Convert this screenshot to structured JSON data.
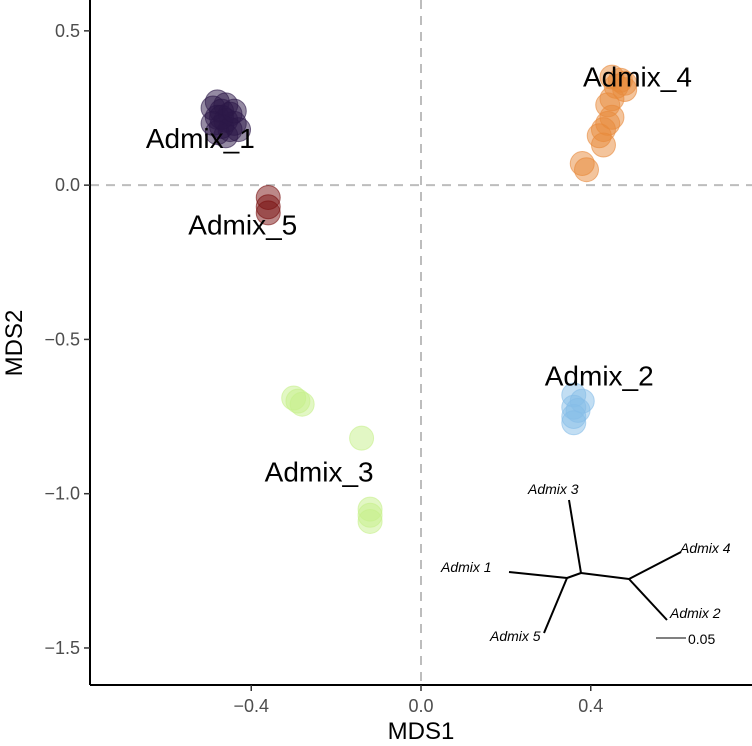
{
  "chart_data": {
    "type": "scatter",
    "xlabel": "MDS1",
    "ylabel": "MDS2",
    "xlim": [
      -0.78,
      0.78
    ],
    "ylim": [
      -1.62,
      0.6
    ],
    "x_ticks": [
      {
        "value": -0.4,
        "label": "−0.4"
      },
      {
        "value": 0.0,
        "label": "0.0"
      },
      {
        "value": 0.4,
        "label": "0.4"
      }
    ],
    "y_ticks": [
      {
        "value": 0.5,
        "label": "0.5"
      },
      {
        "value": 0.0,
        "label": "0.0"
      },
      {
        "value": -0.5,
        "label": "−0.5"
      },
      {
        "value": -1.0,
        "label": "−1.0"
      },
      {
        "value": -1.5,
        "label": "−1.5"
      }
    ],
    "reference_lines": {
      "x": 0,
      "y": 0,
      "style": "dashed",
      "color": "#bdbdbd"
    },
    "grid": false,
    "series": [
      {
        "name": "Admix_1",
        "color": "#2c1848",
        "label_at": [
          -0.52,
          0.12
        ],
        "points": [
          [
            -0.48,
            0.27
          ],
          [
            -0.46,
            0.26
          ],
          [
            -0.49,
            0.25
          ],
          [
            -0.47,
            0.24
          ],
          [
            -0.45,
            0.23
          ],
          [
            -0.48,
            0.22
          ],
          [
            -0.46,
            0.21
          ],
          [
            -0.44,
            0.2
          ],
          [
            -0.49,
            0.2
          ],
          [
            -0.47,
            0.19
          ],
          [
            -0.45,
            0.18
          ],
          [
            -0.43,
            0.18
          ],
          [
            -0.48,
            0.17
          ],
          [
            -0.46,
            0.16
          ],
          [
            -0.47,
            0.22
          ],
          [
            -0.44,
            0.24
          ]
        ]
      },
      {
        "name": "Admix_2",
        "color": "#85bde8",
        "label_at": [
          0.42,
          -0.65
        ],
        "points": [
          [
            0.36,
            -0.68
          ],
          [
            0.38,
            -0.7
          ],
          [
            0.36,
            -0.72
          ],
          [
            0.37,
            -0.73
          ],
          [
            0.36,
            -0.75
          ],
          [
            0.36,
            -0.77
          ]
        ]
      },
      {
        "name": "Admix_3",
        "color": "#c6f08a",
        "label_at": [
          -0.24,
          -0.96
        ],
        "points": [
          [
            -0.3,
            -0.69
          ],
          [
            -0.29,
            -0.7
          ],
          [
            -0.28,
            -0.71
          ],
          [
            -0.14,
            -0.82
          ],
          [
            -0.12,
            -1.05
          ],
          [
            -0.12,
            -1.07
          ],
          [
            -0.12,
            -1.09
          ]
        ]
      },
      {
        "name": "Admix_4",
        "color": "#e8893a",
        "label_at": [
          0.51,
          0.32
        ],
        "points": [
          [
            0.45,
            0.35
          ],
          [
            0.47,
            0.34
          ],
          [
            0.48,
            0.33
          ],
          [
            0.46,
            0.32
          ],
          [
            0.48,
            0.31
          ],
          [
            0.45,
            0.28
          ],
          [
            0.44,
            0.26
          ],
          [
            0.45,
            0.22
          ],
          [
            0.44,
            0.2
          ],
          [
            0.43,
            0.18
          ],
          [
            0.42,
            0.16
          ],
          [
            0.43,
            0.13
          ],
          [
            0.38,
            0.07
          ],
          [
            0.39,
            0.05
          ]
        ]
      },
      {
        "name": "Admix_5",
        "color": "#7a1111",
        "label_at": [
          -0.42,
          -0.16
        ],
        "points": [
          [
            -0.36,
            -0.04
          ],
          [
            -0.36,
            -0.07
          ],
          [
            -0.36,
            -0.09
          ]
        ]
      }
    ],
    "inset_tree": {
      "tips": [
        "Admix 1",
        "Admix 2",
        "Admix 3",
        "Admix 4",
        "Admix 5"
      ],
      "scale_bar_label": "0.05"
    }
  }
}
